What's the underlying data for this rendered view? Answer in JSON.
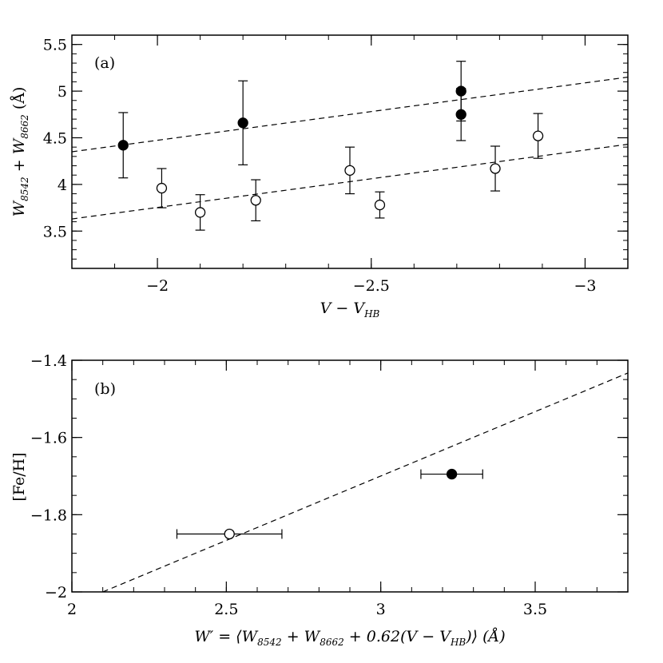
{
  "chart_data": [
    {
      "panel": "(a)",
      "type": "scatter",
      "xlabel": {
        "main": "V − V",
        "sub": "HB"
      },
      "ylabel": {
        "main": "W",
        "sub1": "8542",
        "plus": " + W",
        "sub2": "8662",
        "unit": " (Å)"
      },
      "xlim": [
        -1.8,
        -3.1
      ],
      "ylim": [
        3.1,
        5.6
      ],
      "xticks": [
        -2,
        -2.5,
        -3
      ],
      "xtick_labels": [
        "−2",
        "−2.5",
        "−3"
      ],
      "yticks": [
        3.5,
        4,
        4.5,
        5,
        5.5
      ],
      "ytick_labels": [
        "3.5",
        "4",
        "4.5",
        "5",
        "5.5"
      ],
      "series": [
        {
          "name": "filled",
          "marker": "filled-circle",
          "points": [
            {
              "x": -1.92,
              "y": 4.42,
              "err": 0.35
            },
            {
              "x": -2.2,
              "y": 4.66,
              "err": 0.45
            },
            {
              "x": -2.71,
              "y": 5.0,
              "err": 0.32
            },
            {
              "x": -2.71,
              "y": 4.75,
              "err": 0.28
            }
          ]
        },
        {
          "name": "open",
          "marker": "open-circle",
          "points": [
            {
              "x": -2.01,
              "y": 3.96,
              "err": 0.21
            },
            {
              "x": -2.1,
              "y": 3.7,
              "err": 0.19
            },
            {
              "x": -2.23,
              "y": 3.83,
              "err": 0.22
            },
            {
              "x": -2.45,
              "y": 4.15,
              "err": 0.25
            },
            {
              "x": -2.52,
              "y": 3.78,
              "err": 0.14
            },
            {
              "x": -2.79,
              "y": 4.17,
              "err": 0.24
            },
            {
              "x": -2.89,
              "y": 4.52,
              "err": 0.24
            }
          ]
        }
      ],
      "fits": [
        {
          "name": "filled-fit",
          "x": [
            -1.8,
            -3.1
          ],
          "y": [
            4.35,
            5.15
          ]
        },
        {
          "name": "open-fit",
          "x": [
            -1.8,
            -3.1
          ],
          "y": [
            3.63,
            4.43
          ]
        }
      ]
    },
    {
      "panel": "(b)",
      "type": "scatter",
      "xlabel": {
        "p1": "W′ = ⟨W",
        "s1": "8542",
        "p2": " + W",
        "s2": "8662",
        "p3": " + 0.62(V − V",
        "s3": "HB",
        "p4": ")⟩ (Å)"
      },
      "ylabel": "[Fe/H]",
      "xlim": [
        2.0,
        3.8
      ],
      "ylim": [
        -2.0,
        -1.4
      ],
      "xticks": [
        2,
        2.5,
        3,
        3.5
      ],
      "xtick_labels": [
        "2",
        "2.5",
        "3",
        "3.5"
      ],
      "yticks": [
        -2,
        -1.8,
        -1.6,
        -1.4
      ],
      "ytick_labels": [
        "−2",
        "−1.8",
        "−1.6",
        "−1.4"
      ],
      "series": [
        {
          "name": "open",
          "marker": "open-circle",
          "points": [
            {
              "x": 2.51,
              "y": -1.85,
              "xerr_lo": 0.17,
              "xerr_hi": 0.17
            }
          ]
        },
        {
          "name": "filled",
          "marker": "filled-circle",
          "points": [
            {
              "x": 3.23,
              "y": -1.695,
              "xerr_lo": 0.1,
              "xerr_hi": 0.1
            }
          ]
        }
      ],
      "fits": [
        {
          "name": "calibration",
          "x": [
            2.1,
            3.8
          ],
          "y": [
            -2.0,
            -1.433
          ]
        }
      ]
    }
  ]
}
